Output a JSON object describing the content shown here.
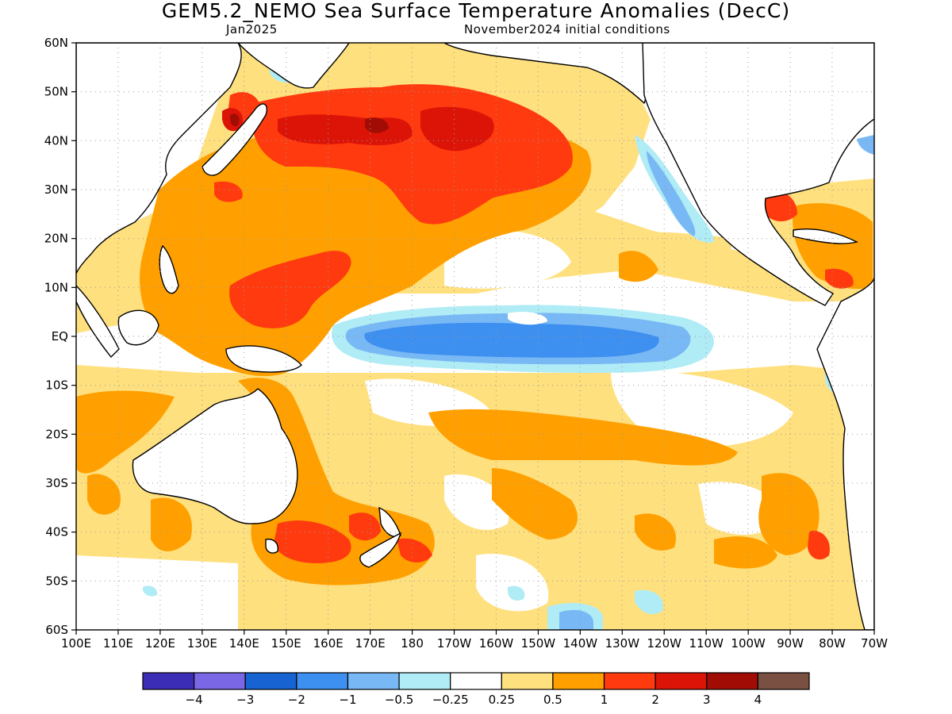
{
  "header": {
    "title": "GEM5.2_NEMO Sea Surface Temperature Anomalies (DecC)",
    "valid_month": "Jan2025",
    "initial_conditions": "November2024 initial conditions"
  },
  "axes": {
    "lat_labels": [
      "60N",
      "50N",
      "40N",
      "30N",
      "20N",
      "10N",
      "EQ",
      "10S",
      "20S",
      "30S",
      "40S",
      "50S",
      "60S"
    ],
    "lon_labels": [
      "100E",
      "110E",
      "120E",
      "130E",
      "140E",
      "150E",
      "160E",
      "170E",
      "180",
      "170W",
      "160W",
      "150W",
      "140W",
      "130W",
      "120W",
      "110W",
      "100W",
      "90W",
      "80W",
      "70W"
    ],
    "lat_range": [
      -60,
      60
    ],
    "lon_range_east": [
      100,
      290
    ],
    "grid": "dotted"
  },
  "colorbar": {
    "colors": [
      "#3b2db5",
      "#7a67e6",
      "#1763d1",
      "#3d8ff0",
      "#78b8f5",
      "#b0ecf5",
      "#ffffff",
      "#ffe07f",
      "#ffa000",
      "#ff3a0f",
      "#dc1408",
      "#a10d05",
      "#7a5042"
    ],
    "labels": [
      "−4",
      "−3",
      "−2",
      "−1",
      "−0.5",
      "−0.25",
      "0.25",
      "0.5",
      "1",
      "2",
      "3",
      "4"
    ]
  },
  "anomaly_regions": [
    {
      "name": "kuroshio-extension",
      "level": 2,
      "note": "North Pacific 30N-48N"
    },
    {
      "name": "north-pacific-core",
      "level": 3
    },
    {
      "name": "western-pacific-warm",
      "level": 1
    },
    {
      "name": "equatorial-cold-tongue",
      "level": -1
    },
    {
      "name": "tasman-sea-warm",
      "level": 2
    },
    {
      "name": "california-coast-cool",
      "level": -0.5
    }
  ]
}
